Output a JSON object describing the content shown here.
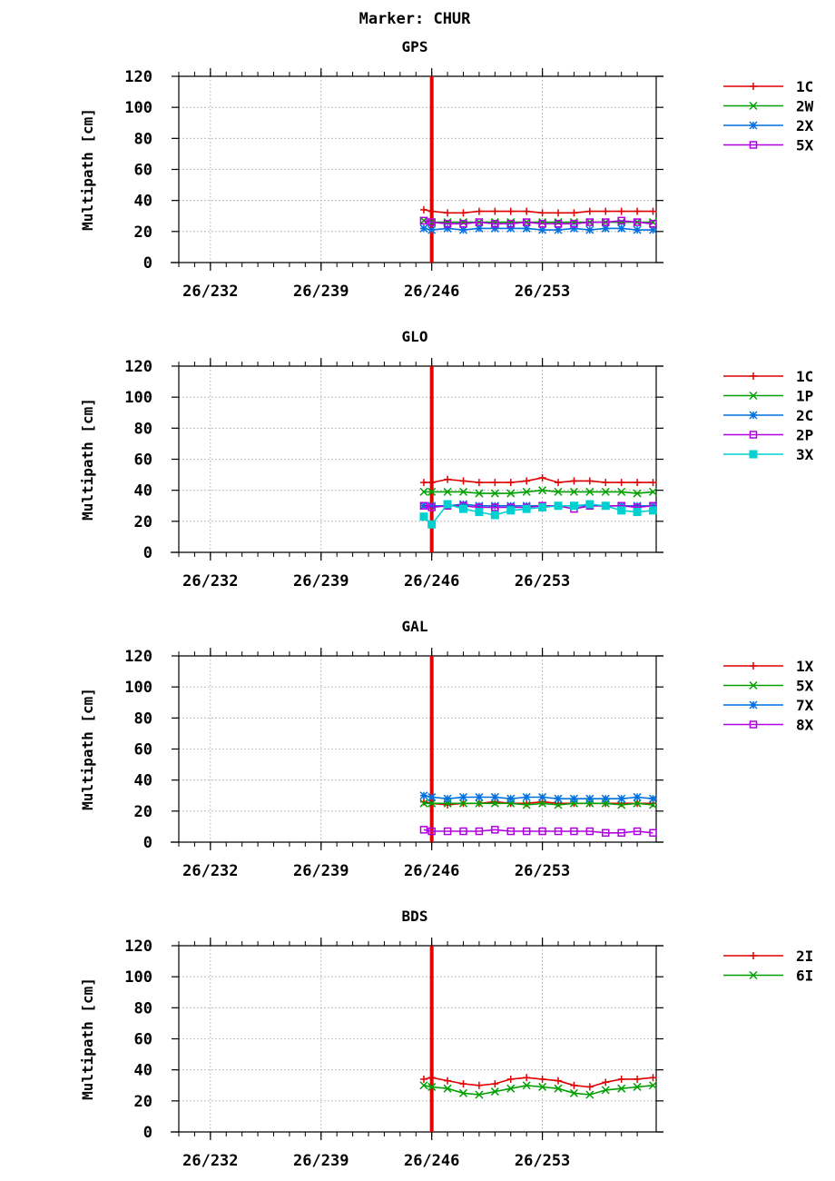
{
  "figure_title": "Marker: CHUR",
  "chart_data": [
    {
      "type": "line",
      "title": "GPS",
      "ylabel": "Multipath [cm]",
      "ylim": [
        0,
        120
      ],
      "yticks": [
        "0",
        "20",
        "40",
        "60",
        "80",
        "100",
        "120"
      ],
      "xlim": [
        228.7,
        258.9
      ],
      "xticks": [
        {
          "value": 230.7,
          "label": "26/232"
        },
        {
          "value": 237.7,
          "label": "26/239"
        },
        {
          "value": 244.7,
          "label": "26/246"
        },
        {
          "value": 251.7,
          "label": "26/253"
        }
      ],
      "grid": true,
      "legend_position": "right",
      "marker_line": {
        "x": 244.7,
        "color": "#e00000"
      },
      "x": [
        244.2,
        244.7,
        245.7,
        246.7,
        247.7,
        248.7,
        249.7,
        250.7,
        251.7,
        252.7,
        253.7,
        254.7,
        255.7,
        256.7,
        257.7,
        258.7
      ],
      "series": [
        {
          "name": "1C",
          "color": "#e00000",
          "marker": "plus",
          "values": [
            34,
            33,
            32,
            32,
            33,
            33,
            33,
            33,
            32,
            32,
            32,
            33,
            33,
            33,
            33,
            33
          ]
        },
        {
          "name": "2W",
          "color": "#00a000",
          "marker": "x",
          "values": [
            27,
            26,
            26,
            26,
            26,
            26,
            26,
            26,
            26,
            26,
            26,
            26,
            26,
            26,
            26,
            26
          ]
        },
        {
          "name": "2X",
          "color": "#0070e0",
          "marker": "star",
          "values": [
            22,
            21,
            22,
            21,
            22,
            22,
            22,
            22,
            21,
            21,
            22,
            21,
            22,
            22,
            21,
            21
          ]
        },
        {
          "name": "5X",
          "color": "#b000e0",
          "marker": "square",
          "values": [
            27,
            26,
            25,
            25,
            26,
            25,
            25,
            26,
            25,
            25,
            25,
            26,
            26,
            27,
            26,
            25
          ]
        }
      ]
    },
    {
      "type": "line",
      "title": "GLO",
      "ylabel": "Multipath [cm]",
      "ylim": [
        0,
        120
      ],
      "yticks": [
        "0",
        "20",
        "40",
        "60",
        "80",
        "100",
        "120"
      ],
      "xlim": [
        228.7,
        258.9
      ],
      "xticks": [
        {
          "value": 230.7,
          "label": "26/232"
        },
        {
          "value": 237.7,
          "label": "26/239"
        },
        {
          "value": 244.7,
          "label": "26/246"
        },
        {
          "value": 251.7,
          "label": "26/253"
        }
      ],
      "grid": true,
      "legend_position": "right",
      "marker_line": {
        "x": 244.7,
        "color": "#e00000"
      },
      "x": [
        244.2,
        244.7,
        245.7,
        246.7,
        247.7,
        248.7,
        249.7,
        250.7,
        251.7,
        252.7,
        253.7,
        254.7,
        255.7,
        256.7,
        257.7,
        258.7
      ],
      "series": [
        {
          "name": "1C",
          "color": "#e00000",
          "marker": "plus",
          "values": [
            45,
            45,
            47,
            46,
            45,
            45,
            45,
            46,
            48,
            45,
            46,
            46,
            45,
            45,
            45,
            45
          ]
        },
        {
          "name": "1P",
          "color": "#00a000",
          "marker": "x",
          "values": [
            39,
            39,
            39,
            39,
            38,
            38,
            38,
            39,
            40,
            39,
            39,
            39,
            39,
            39,
            38,
            39
          ]
        },
        {
          "name": "2C",
          "color": "#0070e0",
          "marker": "star",
          "values": [
            30,
            30,
            30,
            31,
            30,
            30,
            30,
            30,
            30,
            30,
            30,
            30,
            30,
            30,
            30,
            30
          ]
        },
        {
          "name": "2P",
          "color": "#b000e0",
          "marker": "square",
          "values": [
            30,
            29,
            30,
            30,
            29,
            29,
            29,
            29,
            30,
            30,
            28,
            30,
            30,
            30,
            29,
            30
          ]
        },
        {
          "name": "3X",
          "color": "#00d0d0",
          "marker": "filled-square",
          "values": [
            23,
            18,
            31,
            28,
            26,
            24,
            27,
            28,
            29,
            30,
            30,
            31,
            30,
            27,
            26,
            27
          ]
        }
      ]
    },
    {
      "type": "line",
      "title": "GAL",
      "ylabel": "Multipath [cm]",
      "ylim": [
        0,
        120
      ],
      "yticks": [
        "0",
        "20",
        "40",
        "60",
        "80",
        "100",
        "120"
      ],
      "xlim": [
        228.7,
        258.9
      ],
      "xticks": [
        {
          "value": 230.7,
          "label": "26/232"
        },
        {
          "value": 237.7,
          "label": "26/239"
        },
        {
          "value": 244.7,
          "label": "26/246"
        },
        {
          "value": 251.7,
          "label": "26/253"
        }
      ],
      "grid": true,
      "legend_position": "right",
      "marker_line": {
        "x": 244.7,
        "color": "#e00000"
      },
      "x": [
        244.2,
        244.7,
        245.7,
        246.7,
        247.7,
        248.7,
        249.7,
        250.7,
        251.7,
        252.7,
        253.7,
        254.7,
        255.7,
        256.7,
        257.7,
        258.7
      ],
      "series": [
        {
          "name": "1X",
          "color": "#e00000",
          "marker": "plus",
          "values": [
            26,
            25,
            24,
            25,
            25,
            26,
            25,
            25,
            26,
            25,
            25,
            25,
            25,
            25,
            25,
            25
          ]
        },
        {
          "name": "5X",
          "color": "#00a000",
          "marker": "x",
          "values": [
            25,
            25,
            25,
            25,
            25,
            25,
            25,
            24,
            25,
            24,
            25,
            25,
            25,
            24,
            25,
            24
          ]
        },
        {
          "name": "7X",
          "color": "#0070e0",
          "marker": "star",
          "values": [
            30,
            29,
            28,
            29,
            29,
            29,
            28,
            29,
            29,
            28,
            28,
            28,
            28,
            28,
            29,
            28
          ]
        },
        {
          "name": "8X",
          "color": "#b000e0",
          "marker": "square",
          "values": [
            8,
            7,
            7,
            7,
            7,
            8,
            7,
            7,
            7,
            7,
            7,
            7,
            6,
            6,
            7,
            6
          ]
        }
      ]
    },
    {
      "type": "line",
      "title": "BDS",
      "ylabel": "Multipath [cm]",
      "ylim": [
        0,
        120
      ],
      "yticks": [
        "0",
        "20",
        "40",
        "60",
        "80",
        "100",
        "120"
      ],
      "xlim": [
        228.7,
        258.9
      ],
      "xticks": [
        {
          "value": 230.7,
          "label": "26/232"
        },
        {
          "value": 237.7,
          "label": "26/239"
        },
        {
          "value": 244.7,
          "label": "26/246"
        },
        {
          "value": 251.7,
          "label": "26/253"
        }
      ],
      "grid": true,
      "legend_position": "right",
      "marker_line": {
        "x": 244.7,
        "color": "#e00000"
      },
      "x": [
        244.2,
        244.7,
        245.7,
        246.7,
        247.7,
        248.7,
        249.7,
        250.7,
        251.7,
        252.7,
        253.7,
        254.7,
        255.7,
        256.7,
        257.7,
        258.7
      ],
      "series": [
        {
          "name": "2I",
          "color": "#e00000",
          "marker": "plus",
          "values": [
            34,
            35,
            33,
            31,
            30,
            31,
            34,
            35,
            34,
            33,
            30,
            29,
            32,
            34,
            34,
            35
          ]
        },
        {
          "name": "6I",
          "color": "#00a000",
          "marker": "x",
          "values": [
            30,
            29,
            28,
            25,
            24,
            26,
            28,
            30,
            29,
            28,
            25,
            24,
            27,
            28,
            29,
            30
          ]
        }
      ]
    }
  ]
}
